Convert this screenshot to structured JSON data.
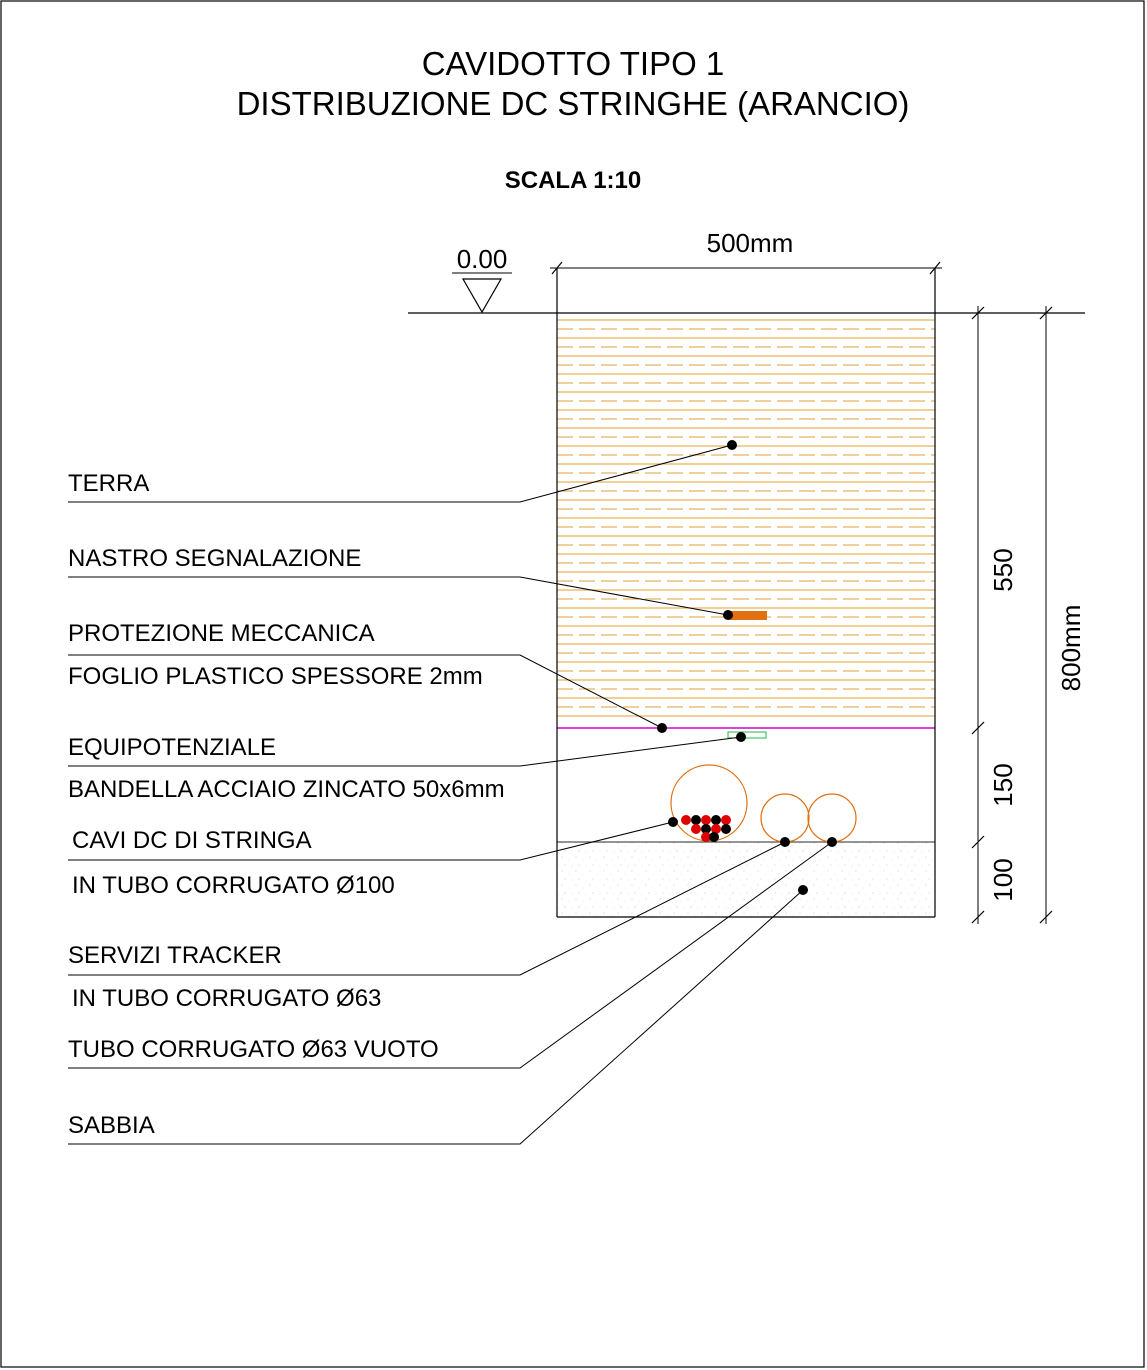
{
  "title": {
    "line1": "CAVIDOTTO TIPO 1",
    "line2": "DISTRIBUZIONE DC STRINGHE (ARANCIO)"
  },
  "scale": "SCALA 1:10",
  "level_marker": "0.00",
  "dimensions": {
    "width": "500mm",
    "layer_top": "550",
    "layer_mid": "150",
    "layer_bottom": "100",
    "total_depth": "800mm"
  },
  "labels": {
    "terra": "TERRA",
    "nastro": "NASTRO SEGNALAZIONE",
    "protezione_1": "PROTEZIONE MECCANICA",
    "protezione_2": "FOGLIO PLASTICO SPESSORE 2mm",
    "equipotenziale_1": "EQUIPOTENZIALE",
    "equipotenziale_2": "BANDELLA ACCIAIO ZINCATO 50x6mm",
    "cavi_1": "CAVI DC DI STRINGA",
    "cavi_2": "IN TUBO CORRUGATO Ø100",
    "servizi_1": "SERVIZI TRACKER",
    "servizi_2": "IN TUBO CORRUGATO Ø63",
    "tubo_vuoto": "TUBO CORRUGATO Ø63 VUOTO",
    "sabbia": "SABBIA"
  },
  "colors": {
    "soil_hatch": "#e8b25a",
    "warning_tape": "#e07010",
    "plastic_sheet": "#e040e0",
    "ground_strip": "#22bb44",
    "conduit": "#e07010",
    "cable_red": "#e00000",
    "cable_black": "#000000"
  }
}
